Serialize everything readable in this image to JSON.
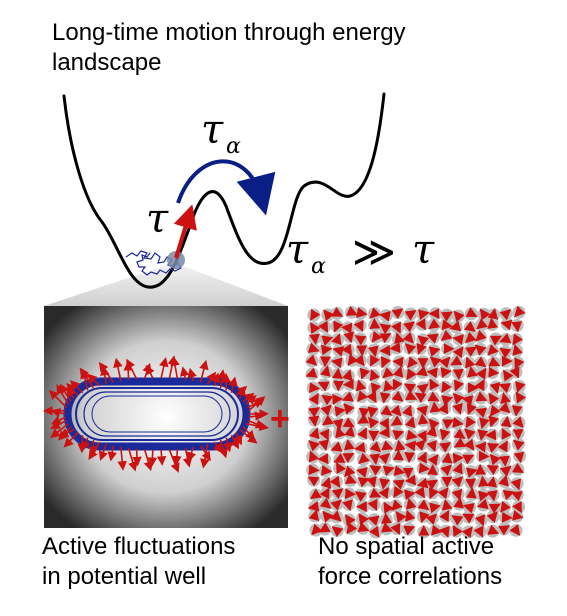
{
  "title": {
    "line1": "Long-time motion through energy",
    "line2": "landscape"
  },
  "symbols": {
    "tau": "τ",
    "tau_alpha_base": "τ",
    "alpha_sub": "α",
    "much_greater": "≫"
  },
  "captions": {
    "left_line1": "Active fluctuations",
    "left_line2": "in potential well",
    "right_line1": "No spatial active",
    "right_line2": "force correlations"
  },
  "plus_sign": "+",
  "colors": {
    "landscape_curve": "#000000",
    "hop_arrow": "#0a1f86",
    "trajectory": "#1a2a9a",
    "active_force": "#cc1111",
    "particle_halo": "#7a8aa8",
    "particle_gray": "#bdbdbd"
  }
}
